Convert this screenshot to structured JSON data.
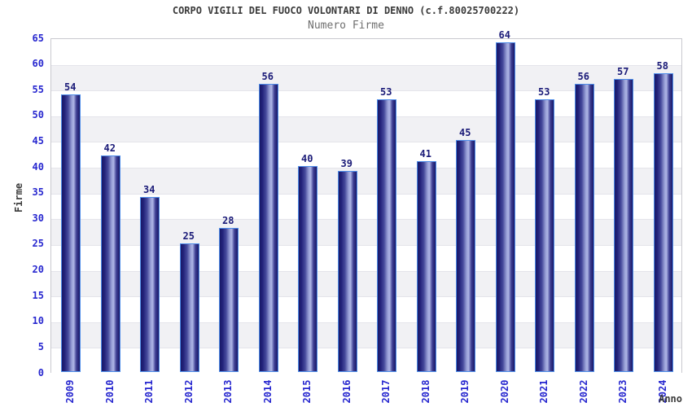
{
  "chart_data": {
    "type": "bar",
    "title": "CORPO VIGILI DEL FUOCO VOLONTARI DI DENNO (c.f.80025700222)",
    "subtitle": "Numero Firme",
    "xlabel": "Anno",
    "ylabel": "Firme",
    "categories": [
      "2009",
      "2010",
      "2011",
      "2012",
      "2013",
      "2014",
      "2015",
      "2016",
      "2017",
      "2018",
      "2019",
      "2020",
      "2021",
      "2022",
      "2023",
      "2024"
    ],
    "values": [
      54,
      42,
      34,
      25,
      28,
      56,
      40,
      39,
      53,
      41,
      45,
      64,
      53,
      56,
      57,
      58
    ],
    "ylim": [
      0,
      65
    ],
    "ytick_step": 5,
    "yticks": [
      0,
      5,
      10,
      15,
      20,
      25,
      30,
      35,
      40,
      45,
      50,
      55,
      60,
      65
    ],
    "grid": "horizontal-bands",
    "legend": "none",
    "colors": {
      "bar_border": "#4e8ce8",
      "bar_dark": "#191968",
      "bar_light": "#aeb5e6",
      "tick_label": "#2727cf",
      "value_label": "#1b1b78",
      "title_text": "#3a3a3a",
      "subtitle_text": "#6e6e6e",
      "band_gray": "#f1f1f4",
      "axis_border": "#c9c9cf"
    }
  }
}
